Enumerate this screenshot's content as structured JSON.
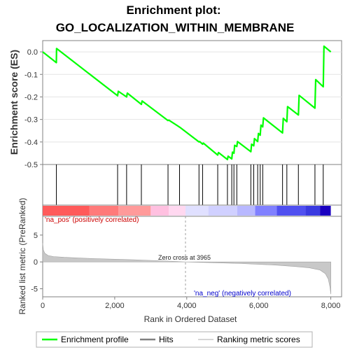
{
  "chart_data": {
    "type": "line",
    "title_line1": "Enrichment plot:",
    "title_line2": "GO_LOCALIZATION_WITHIN_MEMBRANE",
    "es_panel": {
      "ylabel": "Enrichment score (ES)",
      "ylim": [
        -0.5,
        0.05
      ],
      "yticks": [
        0.0,
        -0.1,
        -0.2,
        -0.3,
        -0.4,
        -0.5
      ],
      "ytick_labels": [
        "0.0",
        "-0.1",
        "-0.2",
        "-0.3",
        "-0.4",
        "-0.5"
      ],
      "color": "#00ff00",
      "series": [
        {
          "x": 0,
          "y": 0.0
        },
        {
          "x": 380,
          "y": -0.048
        },
        {
          "x": 385,
          "y": 0.015
        },
        {
          "x": 2080,
          "y": -0.195
        },
        {
          "x": 2100,
          "y": -0.175
        },
        {
          "x": 2330,
          "y": -0.2
        },
        {
          "x": 2350,
          "y": -0.183
        },
        {
          "x": 2740,
          "y": -0.233
        },
        {
          "x": 2760,
          "y": -0.218
        },
        {
          "x": 3480,
          "y": -0.305
        },
        {
          "x": 3500,
          "y": -0.303
        },
        {
          "x": 3810,
          "y": -0.335
        },
        {
          "x": 4340,
          "y": -0.4
        },
        {
          "x": 4360,
          "y": -0.398
        },
        {
          "x": 4440,
          "y": -0.41
        },
        {
          "x": 4460,
          "y": -0.405
        },
        {
          "x": 4860,
          "y": -0.458
        },
        {
          "x": 4880,
          "y": -0.447
        },
        {
          "x": 5130,
          "y": -0.478
        },
        {
          "x": 5150,
          "y": -0.463
        },
        {
          "x": 5250,
          "y": -0.475
        },
        {
          "x": 5270,
          "y": -0.445
        },
        {
          "x": 5310,
          "y": -0.45
        },
        {
          "x": 5330,
          "y": -0.415
        },
        {
          "x": 5390,
          "y": -0.42
        },
        {
          "x": 5410,
          "y": -0.398
        },
        {
          "x": 5780,
          "y": -0.443
        },
        {
          "x": 5800,
          "y": -0.41
        },
        {
          "x": 5860,
          "y": -0.417
        },
        {
          "x": 5880,
          "y": -0.385
        },
        {
          "x": 5970,
          "y": -0.398
        },
        {
          "x": 5990,
          "y": -0.362
        },
        {
          "x": 6040,
          "y": -0.37
        },
        {
          "x": 6060,
          "y": -0.325
        },
        {
          "x": 6110,
          "y": -0.333
        },
        {
          "x": 6130,
          "y": -0.293
        },
        {
          "x": 6660,
          "y": -0.36
        },
        {
          "x": 6680,
          "y": -0.295
        },
        {
          "x": 6780,
          "y": -0.31
        },
        {
          "x": 6800,
          "y": -0.243
        },
        {
          "x": 7100,
          "y": -0.28
        },
        {
          "x": 7120,
          "y": -0.193
        },
        {
          "x": 7560,
          "y": -0.25
        },
        {
          "x": 7580,
          "y": -0.123
        },
        {
          "x": 7790,
          "y": -0.155
        },
        {
          "x": 7810,
          "y": 0.025
        },
        {
          "x": 8000,
          "y": 0.0
        }
      ]
    },
    "hits": [
      380,
      2080,
      2330,
      2740,
      3480,
      3800,
      4340,
      4440,
      4860,
      5130,
      5250,
      5310,
      5390,
      5780,
      5860,
      5970,
      6040,
      6110,
      6660,
      6780,
      7100,
      7560,
      7790
    ],
    "annotations": {
      "pos_label": "'na_pos' (positively correlated)",
      "neg_label": "'na_neg' (negatively correlated)",
      "zero_cross": "Zero cross at 3965",
      "zero_cross_x": 3965
    },
    "ranked_panel": {
      "ylabel": "Ranked list metric (PreRanked)",
      "ylim": [
        -6.5,
        8.5
      ],
      "yticks": [
        5,
        0,
        -5
      ],
      "ytick_labels": [
        "5",
        "0",
        "-5"
      ],
      "fill_color": "#c8c8c8",
      "profile": [
        {
          "x": 0,
          "y": 3.5
        },
        {
          "x": 20,
          "y": 2.2
        },
        {
          "x": 60,
          "y": 1.6
        },
        {
          "x": 150,
          "y": 1.2
        },
        {
          "x": 300,
          "y": 1.0
        },
        {
          "x": 600,
          "y": 0.85
        },
        {
          "x": 1000,
          "y": 0.72
        },
        {
          "x": 1500,
          "y": 0.6
        },
        {
          "x": 2000,
          "y": 0.5
        },
        {
          "x": 2500,
          "y": 0.4
        },
        {
          "x": 3000,
          "y": 0.28
        },
        {
          "x": 3500,
          "y": 0.15
        },
        {
          "x": 3965,
          "y": 0.0
        },
        {
          "x": 4500,
          "y": -0.1
        },
        {
          "x": 5000,
          "y": -0.2
        },
        {
          "x": 5500,
          "y": -0.3
        },
        {
          "x": 6000,
          "y": -0.45
        },
        {
          "x": 6500,
          "y": -0.6
        },
        {
          "x": 7000,
          "y": -0.85
        },
        {
          "x": 7400,
          "y": -1.1
        },
        {
          "x": 7700,
          "y": -1.5
        },
        {
          "x": 7850,
          "y": -2.2
        },
        {
          "x": 7930,
          "y": -3.2
        },
        {
          "x": 7980,
          "y": -4.8
        },
        {
          "x": 8000,
          "y": -6.0
        }
      ]
    },
    "x_axis": {
      "label": "Rank in Ordered Dataset",
      "xlim": [
        0,
        8300
      ],
      "data_max": 8000,
      "ticks": [
        0,
        2000,
        4000,
        6000,
        8000
      ],
      "tick_labels": [
        "0",
        "2,000",
        "4,000",
        "6,000",
        "8,000"
      ]
    },
    "heatmap_bar": {
      "segments": [
        {
          "start": 0,
          "end": 1300,
          "color": "#ff5a5a"
        },
        {
          "start": 1300,
          "end": 2100,
          "color": "#ff7a7a"
        },
        {
          "start": 2100,
          "end": 3000,
          "color": "#ff9a9a"
        },
        {
          "start": 3000,
          "end": 3500,
          "color": "#ffc0e0"
        },
        {
          "start": 3500,
          "end": 3965,
          "color": "#ffd8f0"
        },
        {
          "start": 3965,
          "end": 4600,
          "color": "#e0e0ff"
        },
        {
          "start": 4600,
          "end": 5400,
          "color": "#d0d0ff"
        },
        {
          "start": 5400,
          "end": 5900,
          "color": "#b8b8ff"
        },
        {
          "start": 5900,
          "end": 6500,
          "color": "#8080ff"
        },
        {
          "start": 6500,
          "end": 7300,
          "color": "#5050f0"
        },
        {
          "start": 7300,
          "end": 7700,
          "color": "#3a3ae0"
        },
        {
          "start": 7700,
          "end": 8000,
          "color": "#1a00c0"
        }
      ]
    },
    "legend": [
      {
        "label": "Enrichment profile",
        "color": "#00ff00",
        "kind": "line"
      },
      {
        "label": "Hits",
        "color": "#808080",
        "kind": "line"
      },
      {
        "label": "Ranking metric scores",
        "color": "#c8c8c8",
        "kind": "line"
      }
    ]
  }
}
